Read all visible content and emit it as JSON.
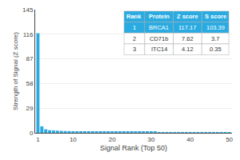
{
  "chart_data": {
    "type": "bar",
    "xlabel": "Signal Rank (Top 50)",
    "ylabel": "Strength of Signal (Z score)",
    "x": [
      1,
      2,
      3,
      4,
      5,
      6,
      7,
      8,
      9,
      10,
      11,
      12,
      13,
      14,
      15,
      16,
      17,
      18,
      19,
      20,
      21,
      22,
      23,
      24,
      25,
      26,
      27,
      28,
      29,
      30,
      31,
      32,
      33,
      34,
      35,
      36,
      37,
      38,
      39,
      40,
      41,
      42,
      43,
      44,
      45,
      46,
      47,
      48,
      49,
      50
    ],
    "values": [
      117.17,
      7.62,
      4.12,
      3.1,
      2.8,
      2.5,
      2.3,
      2.1,
      2.0,
      1.9,
      1.8,
      1.7,
      1.6,
      1.55,
      1.5,
      1.45,
      1.4,
      1.35,
      1.3,
      1.25,
      1.2,
      1.18,
      1.15,
      1.12,
      1.1,
      1.08,
      1.05,
      1.02,
      1.0,
      0.98,
      0.95,
      0.93,
      0.9,
      0.88,
      0.85,
      0.83,
      0.8,
      0.78,
      0.75,
      0.73,
      0.7,
      0.68,
      0.65,
      0.63,
      0.6,
      0.58,
      0.55,
      0.53,
      0.5,
      0.48
    ],
    "color": "#29abe2",
    "xlim": [
      0.3,
      50.7
    ],
    "xticks": [
      1,
      10,
      20,
      30,
      40,
      50
    ],
    "ylim": [
      0,
      145
    ],
    "yticks": [
      0,
      29,
      58,
      87,
      116,
      145
    ],
    "grid": true,
    "table": {
      "headers": [
        "Rank",
        "Protein",
        "Z score",
        "S score"
      ],
      "rows": [
        [
          "1",
          "BRCA1",
          "117.17",
          "103.39"
        ],
        [
          "2",
          "CD71b",
          "7.62",
          "3.7"
        ],
        [
          "3",
          "ITC14",
          "4.12",
          "0.35"
        ]
      ],
      "header_color": "#29abe2",
      "header_text_color": "#ffffff",
      "row1_color": "#29abe2",
      "row1_text_color": "#ffffff"
    }
  }
}
